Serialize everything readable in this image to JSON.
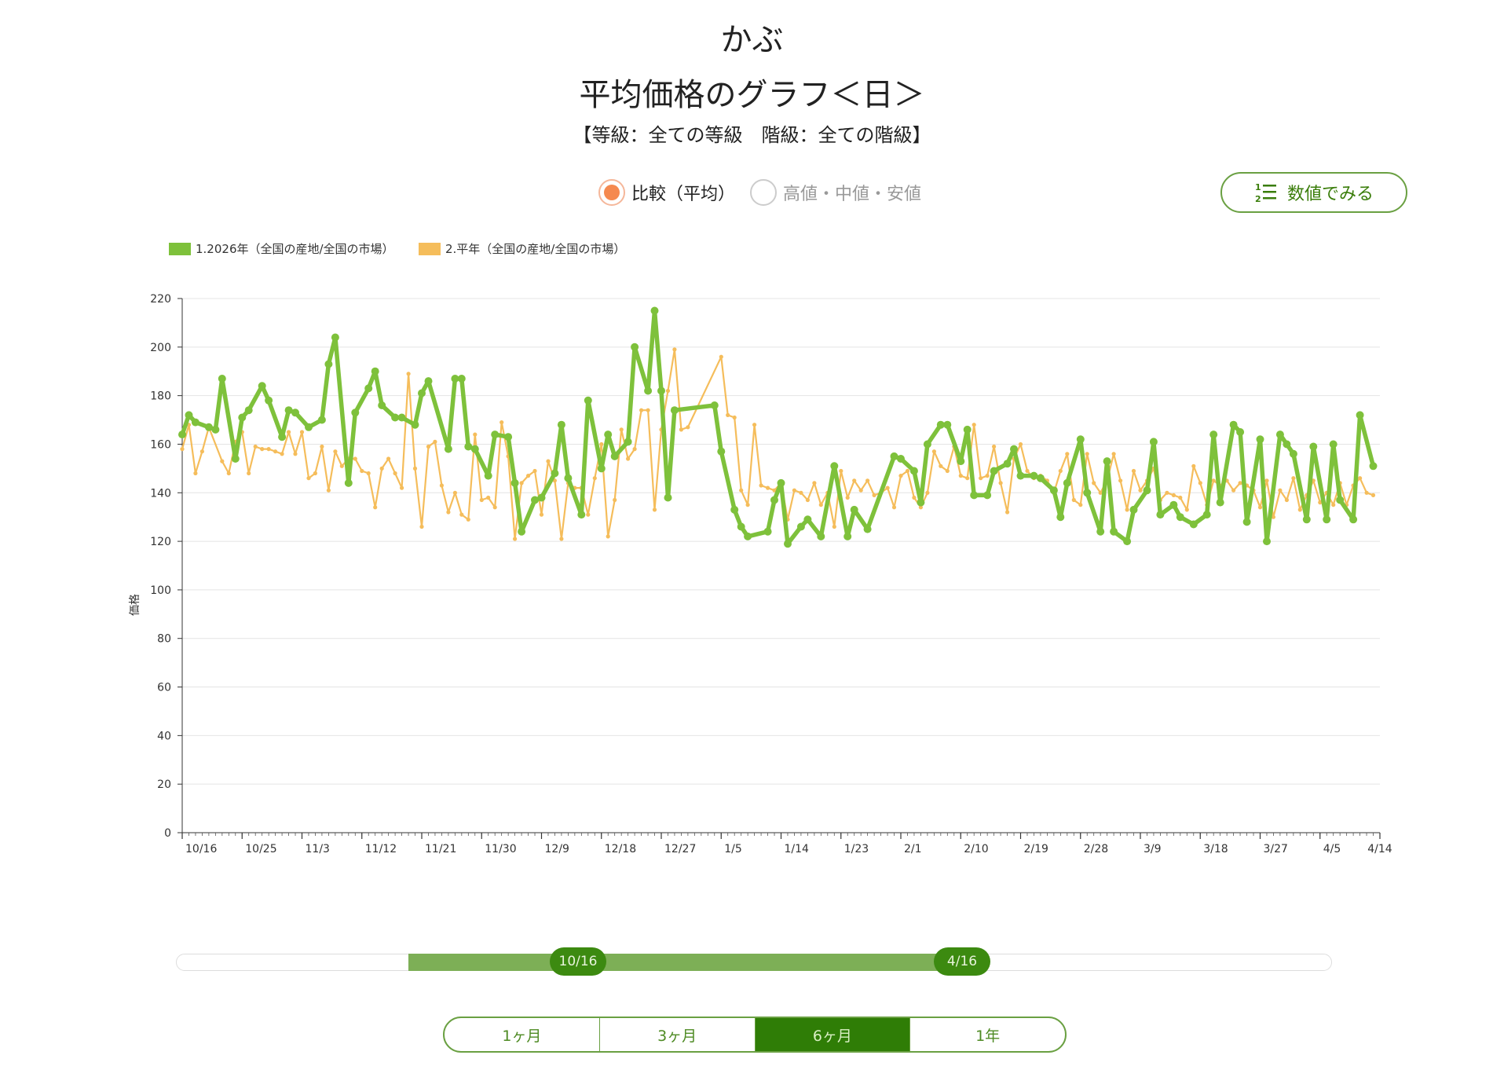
{
  "header": {
    "title": "かぶ",
    "subtitle": "平均価格のグラフ＜日＞",
    "filter": "【等級：全ての等級　階級：全ての階級】"
  },
  "modes": [
    {
      "label": "比較（平均）",
      "selected": true
    },
    {
      "label": "高値・中値・安値",
      "selected": false
    }
  ],
  "values_button": {
    "label": "数値でみる",
    "icon": "numbered-list-icon"
  },
  "colors": {
    "series1": "#7ec13b",
    "series2": "#f5bd5b",
    "accent": "#3c8a10"
  },
  "slider": {
    "start_label": "10/16",
    "end_label": "4/16"
  },
  "periods": [
    {
      "label": "1ヶ月",
      "active": false
    },
    {
      "label": "3ヶ月",
      "active": false
    },
    {
      "label": "6ヶ月",
      "active": true
    },
    {
      "label": "1年",
      "active": false
    }
  ],
  "chart_data": {
    "type": "line",
    "ylabel": "価格",
    "xlabel": "",
    "ylim": [
      0,
      220
    ],
    "yticks": [
      0,
      20,
      40,
      60,
      80,
      100,
      120,
      140,
      160,
      180,
      200,
      220
    ],
    "x_range": [
      "10/16",
      "4/14"
    ],
    "x_ticks": [
      "10/16",
      "10/25",
      "11/3",
      "11/12",
      "11/21",
      "11/30",
      "12/9",
      "12/18",
      "12/27",
      "1/5",
      "1/14",
      "1/23",
      "2/1",
      "2/10",
      "2/19",
      "2/28",
      "3/9",
      "3/18",
      "3/27",
      "4/5",
      "4/14"
    ],
    "grid": true,
    "legend_position": "top-left",
    "series": [
      {
        "name": "1.2026年（全国の産地/全国の市場）",
        "points": [
          [
            "10/16",
            164
          ],
          [
            "10/17",
            172
          ],
          [
            "10/18",
            169
          ],
          [
            "10/20",
            167
          ],
          [
            "10/21",
            166
          ],
          [
            "10/22",
            187
          ],
          [
            "10/24",
            154
          ],
          [
            "10/25",
            171
          ],
          [
            "10/26",
            174
          ],
          [
            "10/28",
            184
          ],
          [
            "10/29",
            178
          ],
          [
            "10/31",
            163
          ],
          [
            "11/1",
            174
          ],
          [
            "11/2",
            173
          ],
          [
            "11/4",
            167
          ],
          [
            "11/6",
            170
          ],
          [
            "11/7",
            193
          ],
          [
            "11/8",
            204
          ],
          [
            "11/10",
            144
          ],
          [
            "11/11",
            173
          ],
          [
            "11/13",
            183
          ],
          [
            "11/14",
            190
          ],
          [
            "11/15",
            176
          ],
          [
            "11/17",
            171
          ],
          [
            "11/18",
            171
          ],
          [
            "11/20",
            168
          ],
          [
            "11/21",
            181
          ],
          [
            "11/22",
            186
          ],
          [
            "11/25",
            158
          ],
          [
            "11/26",
            187
          ],
          [
            "11/27",
            187
          ],
          [
            "11/28",
            159
          ],
          [
            "11/29",
            158
          ],
          [
            "12/1",
            147
          ],
          [
            "12/2",
            164
          ],
          [
            "12/4",
            163
          ],
          [
            "12/5",
            144
          ],
          [
            "12/6",
            124
          ],
          [
            "12/8",
            137
          ],
          [
            "12/9",
            138
          ],
          [
            "12/11",
            148
          ],
          [
            "12/12",
            168
          ],
          [
            "12/13",
            146
          ],
          [
            "12/15",
            131
          ],
          [
            "12/16",
            178
          ],
          [
            "12/18",
            150
          ],
          [
            "12/19",
            164
          ],
          [
            "12/20",
            155
          ],
          [
            "12/22",
            161
          ],
          [
            "12/23",
            200
          ],
          [
            "12/25",
            182
          ],
          [
            "12/26",
            215
          ],
          [
            "12/27",
            182
          ],
          [
            "12/28",
            138
          ],
          [
            "12/29",
            174
          ],
          [
            "1/4",
            176
          ],
          [
            "1/5",
            157
          ],
          [
            "1/7",
            133
          ],
          [
            "1/8",
            126
          ],
          [
            "1/9",
            122
          ],
          [
            "1/12",
            124
          ],
          [
            "1/13",
            137
          ],
          [
            "1/14",
            144
          ],
          [
            "1/15",
            119
          ],
          [
            "1/17",
            126
          ],
          [
            "1/18",
            129
          ],
          [
            "1/20",
            122
          ],
          [
            "1/22",
            151
          ],
          [
            "1/24",
            122
          ],
          [
            "1/25",
            133
          ],
          [
            "1/27",
            125
          ],
          [
            "1/31",
            155
          ],
          [
            "2/1",
            154
          ],
          [
            "2/3",
            149
          ],
          [
            "2/4",
            136
          ],
          [
            "2/5",
            160
          ],
          [
            "2/7",
            168
          ],
          [
            "2/8",
            168
          ],
          [
            "2/10",
            153
          ],
          [
            "2/11",
            166
          ],
          [
            "2/12",
            139
          ],
          [
            "2/14",
            139
          ],
          [
            "2/15",
            149
          ],
          [
            "2/17",
            152
          ],
          [
            "2/18",
            158
          ],
          [
            "2/19",
            147
          ],
          [
            "2/21",
            147
          ],
          [
            "2/22",
            146
          ],
          [
            "2/24",
            141
          ],
          [
            "2/25",
            130
          ],
          [
            "2/26",
            144
          ],
          [
            "2/28",
            162
          ],
          [
            "3/1",
            140
          ],
          [
            "3/3",
            124
          ],
          [
            "3/4",
            153
          ],
          [
            "3/5",
            124
          ],
          [
            "3/7",
            120
          ],
          [
            "3/8",
            133
          ],
          [
            "3/10",
            141
          ],
          [
            "3/11",
            161
          ],
          [
            "3/12",
            131
          ],
          [
            "3/14",
            135
          ],
          [
            "3/15",
            130
          ],
          [
            "3/17",
            127
          ],
          [
            "3/19",
            131
          ],
          [
            "3/20",
            164
          ],
          [
            "3/21",
            136
          ],
          [
            "3/23",
            168
          ],
          [
            "3/24",
            165
          ],
          [
            "3/25",
            128
          ],
          [
            "3/27",
            162
          ],
          [
            "3/28",
            120
          ],
          [
            "3/30",
            164
          ],
          [
            "3/31",
            160
          ],
          [
            "4/1",
            156
          ],
          [
            "4/3",
            129
          ],
          [
            "4/4",
            159
          ],
          [
            "4/6",
            129
          ],
          [
            "4/7",
            160
          ],
          [
            "4/8",
            137
          ],
          [
            "4/10",
            129
          ],
          [
            "4/11",
            172
          ],
          [
            "4/13",
            151
          ]
        ]
      },
      {
        "name": "2.平年（全国の産地/全国の市場）",
        "points": [
          [
            "10/16",
            158
          ],
          [
            "10/17",
            168
          ],
          [
            "10/18",
            148
          ],
          [
            "10/19",
            157
          ],
          [
            "10/20",
            167
          ],
          [
            "10/22",
            153
          ],
          [
            "10/23",
            148
          ],
          [
            "10/24",
            161
          ],
          [
            "10/25",
            165
          ],
          [
            "10/26",
            148
          ],
          [
            "10/27",
            159
          ],
          [
            "10/28",
            158
          ],
          [
            "10/29",
            158
          ],
          [
            "10/30",
            157
          ],
          [
            "10/31",
            156
          ],
          [
            "11/1",
            165
          ],
          [
            "11/2",
            156
          ],
          [
            "11/3",
            165
          ],
          [
            "11/4",
            146
          ],
          [
            "11/5",
            148
          ],
          [
            "11/6",
            159
          ],
          [
            "11/7",
            141
          ],
          [
            "11/8",
            157
          ],
          [
            "11/9",
            151
          ],
          [
            "11/10",
            154
          ],
          [
            "11/11",
            154
          ],
          [
            "11/12",
            149
          ],
          [
            "11/13",
            148
          ],
          [
            "11/14",
            134
          ],
          [
            "11/15",
            150
          ],
          [
            "11/16",
            154
          ],
          [
            "11/17",
            148
          ],
          [
            "11/18",
            142
          ],
          [
            "11/19",
            189
          ],
          [
            "11/20",
            150
          ],
          [
            "11/21",
            126
          ],
          [
            "11/22",
            159
          ],
          [
            "11/23",
            161
          ],
          [
            "11/24",
            143
          ],
          [
            "11/25",
            132
          ],
          [
            "11/26",
            140
          ],
          [
            "11/27",
            131
          ],
          [
            "11/28",
            129
          ],
          [
            "11/29",
            164
          ],
          [
            "11/30",
            137
          ],
          [
            "12/1",
            138
          ],
          [
            "12/2",
            134
          ],
          [
            "12/3",
            169
          ],
          [
            "12/4",
            155
          ],
          [
            "12/5",
            121
          ],
          [
            "12/6",
            144
          ],
          [
            "12/7",
            147
          ],
          [
            "12/8",
            149
          ],
          [
            "12/9",
            131
          ],
          [
            "12/10",
            153
          ],
          [
            "12/11",
            145
          ],
          [
            "12/12",
            121
          ],
          [
            "12/13",
            144
          ],
          [
            "12/14",
            142
          ],
          [
            "12/15",
            142
          ],
          [
            "12/16",
            131
          ],
          [
            "12/17",
            146
          ],
          [
            "12/18",
            160
          ],
          [
            "12/19",
            122
          ],
          [
            "12/20",
            137
          ],
          [
            "12/21",
            166
          ],
          [
            "12/22",
            154
          ],
          [
            "12/23",
            158
          ],
          [
            "12/24",
            174
          ],
          [
            "12/25",
            174
          ],
          [
            "12/26",
            133
          ],
          [
            "12/27",
            166
          ],
          [
            "12/28",
            182
          ],
          [
            "12/29",
            199
          ],
          [
            "12/30",
            166
          ],
          [
            "12/31",
            167
          ],
          [
            "1/5",
            196
          ],
          [
            "1/6",
            172
          ],
          [
            "1/7",
            171
          ],
          [
            "1/8",
            141
          ],
          [
            "1/9",
            135
          ],
          [
            "1/10",
            168
          ],
          [
            "1/11",
            143
          ],
          [
            "1/12",
            142
          ],
          [
            "1/13",
            141
          ],
          [
            "1/14",
            144
          ],
          [
            "1/15",
            129
          ],
          [
            "1/16",
            141
          ],
          [
            "1/17",
            140
          ],
          [
            "1/18",
            137
          ],
          [
            "1/19",
            144
          ],
          [
            "1/20",
            135
          ],
          [
            "1/21",
            140
          ],
          [
            "1/22",
            126
          ],
          [
            "1/23",
            149
          ],
          [
            "1/24",
            138
          ],
          [
            "1/25",
            145
          ],
          [
            "1/26",
            141
          ],
          [
            "1/27",
            145
          ],
          [
            "1/28",
            139
          ],
          [
            "1/29",
            140
          ],
          [
            "1/30",
            142
          ],
          [
            "1/31",
            134
          ],
          [
            "2/1",
            147
          ],
          [
            "2/2",
            149
          ],
          [
            "2/3",
            138
          ],
          [
            "2/4",
            134
          ],
          [
            "2/5",
            140
          ],
          [
            "2/6",
            157
          ],
          [
            "2/7",
            151
          ],
          [
            "2/8",
            149
          ],
          [
            "2/9",
            159
          ],
          [
            "2/10",
            147
          ],
          [
            "2/11",
            146
          ],
          [
            "2/12",
            168
          ],
          [
            "2/13",
            146
          ],
          [
            "2/14",
            147
          ],
          [
            "2/15",
            159
          ],
          [
            "2/16",
            144
          ],
          [
            "2/17",
            132
          ],
          [
            "2/18",
            154
          ],
          [
            "2/19",
            160
          ],
          [
            "2/20",
            149
          ],
          [
            "2/21",
            146
          ],
          [
            "2/22",
            147
          ],
          [
            "2/23",
            145
          ],
          [
            "2/24",
            140
          ],
          [
            "2/25",
            149
          ],
          [
            "2/26",
            156
          ],
          [
            "2/27",
            137
          ],
          [
            "2/28",
            135
          ],
          [
            "3/1",
            156
          ],
          [
            "3/2",
            144
          ],
          [
            "3/3",
            140
          ],
          [
            "3/4",
            145
          ],
          [
            "3/5",
            156
          ],
          [
            "3/6",
            145
          ],
          [
            "3/7",
            133
          ],
          [
            "3/8",
            149
          ],
          [
            "3/9",
            141
          ],
          [
            "3/10",
            145
          ],
          [
            "3/11",
            150
          ],
          [
            "3/12",
            137
          ],
          [
            "3/13",
            140
          ],
          [
            "3/14",
            139
          ],
          [
            "3/15",
            138
          ],
          [
            "3/16",
            133
          ],
          [
            "3/17",
            151
          ],
          [
            "3/18",
            144
          ],
          [
            "3/19",
            135
          ],
          [
            "3/20",
            145
          ],
          [
            "3/21",
            143
          ],
          [
            "3/22",
            145
          ],
          [
            "3/23",
            141
          ],
          [
            "3/24",
            144
          ],
          [
            "3/25",
            143
          ],
          [
            "3/26",
            141
          ],
          [
            "3/27",
            134
          ],
          [
            "3/28",
            145
          ],
          [
            "3/29",
            130
          ],
          [
            "3/30",
            141
          ],
          [
            "3/31",
            137
          ],
          [
            "4/1",
            146
          ],
          [
            "4/2",
            133
          ],
          [
            "4/3",
            139
          ],
          [
            "4/4",
            145
          ],
          [
            "4/5",
            136
          ],
          [
            "4/6",
            140
          ],
          [
            "4/7",
            135
          ],
          [
            "4/8",
            144
          ],
          [
            "4/9",
            135
          ],
          [
            "4/10",
            143
          ],
          [
            "4/11",
            146
          ],
          [
            "4/12",
            140
          ],
          [
            "4/13",
            139
          ]
        ]
      }
    ]
  }
}
